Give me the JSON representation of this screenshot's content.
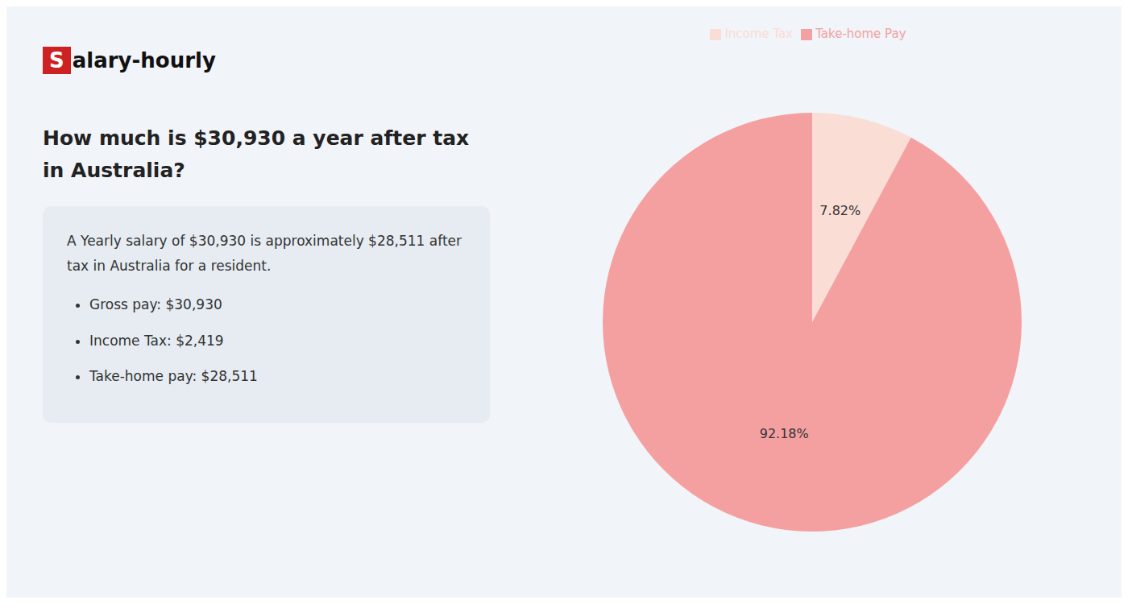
{
  "chart_data": {
    "type": "pie",
    "title": "How much is $30,930 a year after tax in Australia?",
    "annotations": [
      "Salary-hourly",
      "A Yearly salary of $30,930 is approximately $28,511 after tax in Australia for a resident.",
      "Gross pay: $30,930",
      "Income Tax: $2,419",
      "Take-home pay: $28,511"
    ],
    "categories": [
      "Income Tax",
      "Take-home Pay"
    ],
    "values": [
      7.82,
      92.18
    ],
    "value_labels": [
      "7.82%",
      "92.18%"
    ],
    "colors": [
      "#faddd5",
      "#f5a0a0"
    ],
    "data_labels": true,
    "legend": "top"
  }
}
